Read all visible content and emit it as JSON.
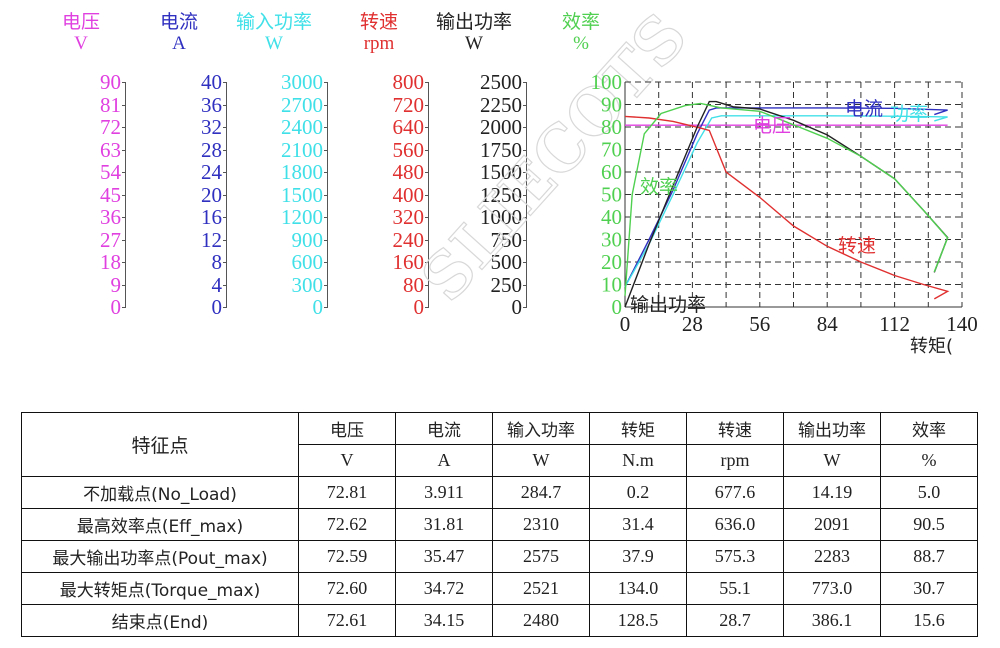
{
  "axes_headers": [
    {
      "label": "电压",
      "unit": "V",
      "color": "#e040e0"
    },
    {
      "label": "电流",
      "unit": "A",
      "color": "#3030c0"
    },
    {
      "label": "输入功率",
      "unit": "W",
      "color": "#40e0e8"
    },
    {
      "label": "转速",
      "unit": "rpm",
      "color": "#e03030"
    },
    {
      "label": "输出功率",
      "unit": "W",
      "color": "#222222"
    },
    {
      "label": "效率",
      "unit": "%",
      "color": "#50d050"
    }
  ],
  "axes_ticks": {
    "voltage": [
      "90",
      "81",
      "72",
      "63",
      "54",
      "45",
      "36",
      "27",
      "18",
      "9",
      "0"
    ],
    "current": [
      "40",
      "36",
      "32",
      "28",
      "24",
      "20",
      "16",
      "12",
      "8",
      "4",
      "0"
    ],
    "input_power": [
      "3000",
      "2700",
      "2400",
      "2100",
      "1800",
      "1500",
      "1200",
      "900",
      "600",
      "300",
      "0"
    ],
    "speed": [
      "800",
      "720",
      "640",
      "560",
      "480",
      "400",
      "320",
      "240",
      "160",
      "80",
      "0"
    ],
    "output_power": [
      "2500",
      "2250",
      "2000",
      "1750",
      "1500",
      "1250",
      "1000",
      "750",
      "500",
      "250",
      "0"
    ],
    "efficiency": [
      "100",
      "90",
      "80",
      "70",
      "60",
      "50",
      "40",
      "30",
      "20",
      "10",
      "0"
    ]
  },
  "x_axis": {
    "ticks": [
      "0",
      "28",
      "56",
      "84",
      "112",
      "140"
    ],
    "label": "转矩("
  },
  "watermark": "SLIECOTS",
  "curve_labels": {
    "current": "电流",
    "input_power": "功率",
    "voltage": "电压",
    "efficiency": "效率",
    "speed": "转速",
    "output_power": "输出功率"
  },
  "chart_data": {
    "type": "line",
    "title": "",
    "xlabel": "转矩 (N.m)",
    "ylabel": "",
    "xlim": [
      0,
      140
    ],
    "ylim": [
      0,
      100
    ],
    "grid": true,
    "x": [
      0.2,
      10,
      20,
      31.4,
      35,
      37.9,
      45,
      56,
      70,
      84,
      98,
      112,
      124,
      134.0,
      128.5
    ],
    "series": [
      {
        "name": "电压 (V)",
        "axis_range": [
          0,
          90
        ],
        "color": "#e040e0",
        "values": [
          72.81,
          72.7,
          72.7,
          72.62,
          72.6,
          72.59,
          72.6,
          72.6,
          72.6,
          72.6,
          72.6,
          72.6,
          72.6,
          72.6,
          72.61
        ]
      },
      {
        "name": "电流 (A)",
        "axis_range": [
          0,
          40
        ],
        "color": "#3030c0",
        "values": [
          3.911,
          12,
          21,
          31.81,
          35.0,
          35.47,
          35.4,
          35.3,
          35.2,
          35.2,
          35.1,
          35.0,
          34.9,
          34.72,
          34.15
        ]
      },
      {
        "name": "输入功率 (W)",
        "axis_range": [
          0,
          3000
        ],
        "color": "#40e0e8",
        "values": [
          284.7,
          950,
          1600,
          2310,
          2500,
          2575,
          2560,
          2550,
          2545,
          2540,
          2535,
          2530,
          2525,
          2521,
          2480
        ]
      },
      {
        "name": "转速 (rpm)",
        "axis_range": [
          0,
          800
        ],
        "color": "#e03030",
        "values": [
          677.6,
          672,
          660,
          636.0,
          625,
          575.3,
          470,
          390,
          290,
          215,
          150,
          105,
          75,
          55.1,
          28.7
        ]
      },
      {
        "name": "输出功率 (W)",
        "axis_range": [
          0,
          2500
        ],
        "color": "#222222",
        "values": [
          14.19,
          700,
          1350,
          2091,
          2260,
          2283,
          2230,
          2200,
          2080,
          1900,
          1680,
          1430,
          1080,
          773.0,
          386.1
        ]
      },
      {
        "name": "效率 (%)",
        "axis_range": [
          0,
          100
        ],
        "color": "#50d050",
        "values": [
          5.0,
          80,
          88,
          90.5,
          89.5,
          88.7,
          88,
          87,
          82,
          75,
          67,
          57,
          43,
          30.7,
          15.6
        ]
      }
    ]
  },
  "table": {
    "header_col": "特征点",
    "columns": [
      {
        "name": "电压",
        "unit": "V"
      },
      {
        "name": "电流",
        "unit": "A"
      },
      {
        "name": "输入功率",
        "unit": "W"
      },
      {
        "name": "转矩",
        "unit": "N.m"
      },
      {
        "name": "转速",
        "unit": "rpm"
      },
      {
        "name": "输出功率",
        "unit": "W"
      },
      {
        "name": "效率",
        "unit": "%"
      }
    ],
    "rows": [
      {
        "label": "不加载点(No_Load)",
        "values": [
          "72.81",
          "3.911",
          "284.7",
          "0.2",
          "677.6",
          "14.19",
          "5.0"
        ]
      },
      {
        "label": "最高效率点(Eff_max)",
        "values": [
          "72.62",
          "31.81",
          "2310",
          "31.4",
          "636.0",
          "2091",
          "90.5"
        ]
      },
      {
        "label": "最大输出功率点(Pout_max)",
        "values": [
          "72.59",
          "35.47",
          "2575",
          "37.9",
          "575.3",
          "2283",
          "88.7"
        ]
      },
      {
        "label": "最大转矩点(Torque_max)",
        "values": [
          "72.60",
          "34.72",
          "2521",
          "134.0",
          "55.1",
          "773.0",
          "30.7"
        ]
      },
      {
        "label": "结束点(End)",
        "values": [
          "72.61",
          "34.15",
          "2480",
          "128.5",
          "28.7",
          "386.1",
          "15.6"
        ]
      }
    ]
  }
}
